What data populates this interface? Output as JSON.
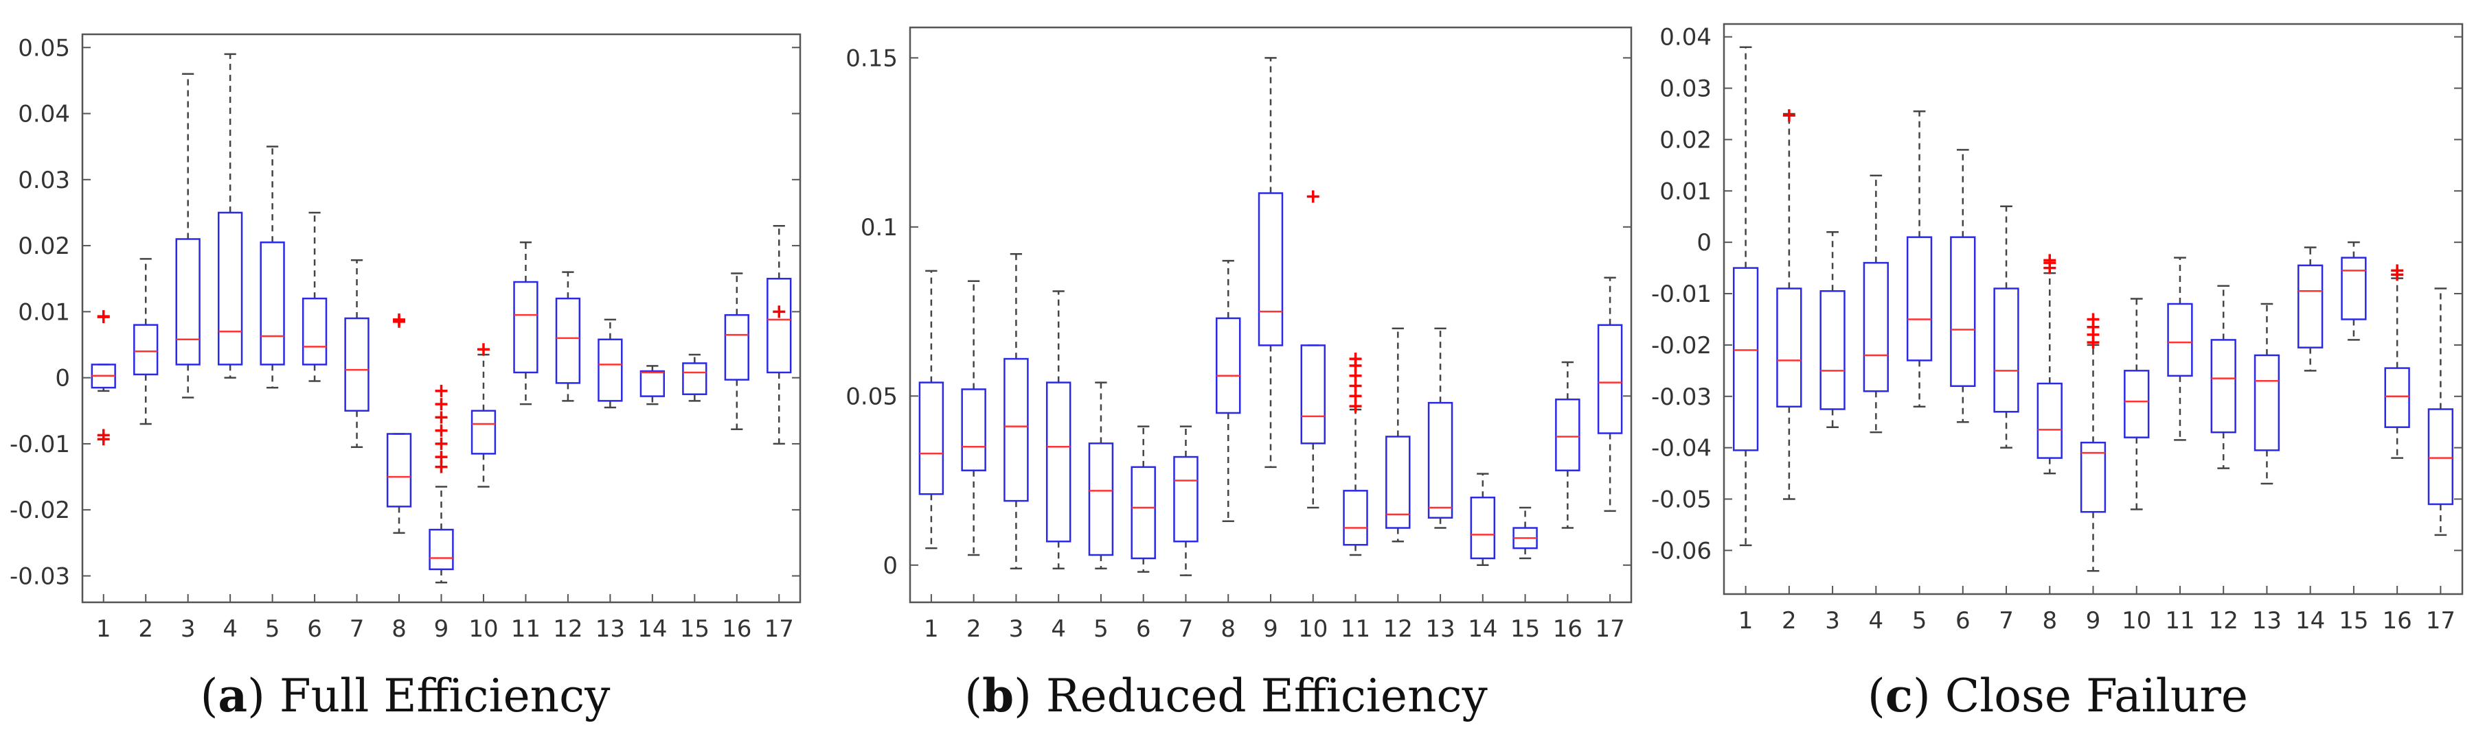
{
  "colors": {
    "box": "#2a2ae6",
    "median": "#ff3333",
    "whisker": "#444444",
    "outlier": "#ff0000",
    "frame": "#555555",
    "text": "#333333"
  },
  "chart_data": [
    {
      "type": "boxplot",
      "title": "Full Efficiency",
      "label": "a",
      "categories": [
        "1",
        "2",
        "3",
        "4",
        "5",
        "6",
        "7",
        "8",
        "9",
        "10",
        "11",
        "12",
        "13",
        "14",
        "15",
        "16",
        "17"
      ],
      "ylim": [
        -0.034,
        0.052
      ],
      "yticks": [
        -0.03,
        -0.02,
        -0.01,
        0,
        0.01,
        0.02,
        0.03,
        0.04,
        0.05
      ],
      "ytick_labels": [
        "-0.03",
        "-0.02",
        "-0.01",
        "0",
        "0.01",
        "0.02",
        "0.03",
        "0.04",
        "0.05"
      ],
      "boxes": [
        {
          "cat": "1",
          "lo": -0.002,
          "q1": -0.0015,
          "med": 0.0003,
          "q3": 0.002,
          "hi": 0.002,
          "outliers": [
            0.0093,
            0.0092,
            -0.0087,
            -0.0093
          ]
        },
        {
          "cat": "2",
          "lo": -0.007,
          "q1": 0.0005,
          "med": 0.004,
          "q3": 0.008,
          "hi": 0.018,
          "outliers": []
        },
        {
          "cat": "3",
          "lo": -0.003,
          "q1": 0.002,
          "med": 0.0058,
          "q3": 0.021,
          "hi": 0.046,
          "outliers": []
        },
        {
          "cat": "4",
          "lo": 0.0,
          "q1": 0.002,
          "med": 0.007,
          "q3": 0.025,
          "hi": 0.049,
          "outliers": []
        },
        {
          "cat": "5",
          "lo": -0.0015,
          "q1": 0.002,
          "med": 0.0063,
          "q3": 0.0205,
          "hi": 0.035,
          "outliers": []
        },
        {
          "cat": "6",
          "lo": -0.0005,
          "q1": 0.002,
          "med": 0.0047,
          "q3": 0.012,
          "hi": 0.025,
          "outliers": []
        },
        {
          "cat": "7",
          "lo": -0.0105,
          "q1": -0.005,
          "med": 0.0012,
          "q3": 0.009,
          "hi": 0.0178,
          "outliers": []
        },
        {
          "cat": "8",
          "lo": -0.0235,
          "q1": -0.0195,
          "med": -0.015,
          "q3": -0.0085,
          "hi": -0.0085,
          "outliers": [
            0.0088,
            0.0085
          ]
        },
        {
          "cat": "9",
          "lo": -0.031,
          "q1": -0.029,
          "med": -0.0273,
          "q3": -0.023,
          "hi": -0.0165,
          "outliers": [
            -0.0135,
            -0.012,
            -0.01,
            -0.008,
            -0.006,
            -0.004,
            -0.002
          ]
        },
        {
          "cat": "10",
          "lo": -0.0165,
          "q1": -0.0115,
          "med": -0.007,
          "q3": -0.005,
          "hi": 0.0035,
          "outliers": [
            0.0043
          ]
        },
        {
          "cat": "11",
          "lo": -0.004,
          "q1": 0.0008,
          "med": 0.0095,
          "q3": 0.0145,
          "hi": 0.0205,
          "outliers": []
        },
        {
          "cat": "12",
          "lo": -0.0035,
          "q1": -0.0008,
          "med": 0.006,
          "q3": 0.012,
          "hi": 0.016,
          "outliers": []
        },
        {
          "cat": "13",
          "lo": -0.0045,
          "q1": -0.0035,
          "med": 0.002,
          "q3": 0.0058,
          "hi": 0.0088,
          "outliers": []
        },
        {
          "cat": "14",
          "lo": -0.004,
          "q1": -0.0028,
          "med": 0.0008,
          "q3": 0.001,
          "hi": 0.0018,
          "outliers": []
        },
        {
          "cat": "15",
          "lo": -0.0035,
          "q1": -0.0025,
          "med": 0.0008,
          "q3": 0.0022,
          "hi": 0.0035,
          "outliers": []
        },
        {
          "cat": "16",
          "lo": -0.0078,
          "q1": -0.0003,
          "med": 0.0065,
          "q3": 0.0095,
          "hi": 0.0158,
          "outliers": []
        },
        {
          "cat": "17",
          "lo": -0.01,
          "q1": 0.0008,
          "med": 0.0088,
          "q3": 0.015,
          "hi": 0.023,
          "outliers": [
            0.01
          ]
        }
      ]
    },
    {
      "type": "boxplot",
      "title": "Reduced Efficiency",
      "label": "b",
      "categories": [
        "1",
        "2",
        "3",
        "4",
        "5",
        "6",
        "7",
        "8",
        "9",
        "10",
        "11",
        "12",
        "13",
        "14",
        "15",
        "16",
        "17"
      ],
      "ylim": [
        -0.011,
        0.159
      ],
      "yticks": [
        0,
        0.05,
        0.1,
        0.15
      ],
      "ytick_labels": [
        "0",
        "0.05",
        "0.1",
        "0.15"
      ],
      "boxes": [
        {
          "cat": "1",
          "lo": 0.005,
          "q1": 0.021,
          "med": 0.033,
          "q3": 0.054,
          "hi": 0.087,
          "outliers": []
        },
        {
          "cat": "2",
          "lo": 0.003,
          "q1": 0.028,
          "med": 0.035,
          "q3": 0.052,
          "hi": 0.084,
          "outliers": []
        },
        {
          "cat": "3",
          "lo": -0.001,
          "q1": 0.019,
          "med": 0.041,
          "q3": 0.061,
          "hi": 0.092,
          "outliers": []
        },
        {
          "cat": "4",
          "lo": -0.001,
          "q1": 0.007,
          "med": 0.035,
          "q3": 0.054,
          "hi": 0.081,
          "outliers": []
        },
        {
          "cat": "5",
          "lo": -0.001,
          "q1": 0.003,
          "med": 0.022,
          "q3": 0.036,
          "hi": 0.054,
          "outliers": []
        },
        {
          "cat": "6",
          "lo": -0.002,
          "q1": 0.002,
          "med": 0.017,
          "q3": 0.029,
          "hi": 0.041,
          "outliers": []
        },
        {
          "cat": "7",
          "lo": -0.003,
          "q1": 0.007,
          "med": 0.025,
          "q3": 0.032,
          "hi": 0.041,
          "outliers": []
        },
        {
          "cat": "8",
          "lo": 0.013,
          "q1": 0.045,
          "med": 0.056,
          "q3": 0.073,
          "hi": 0.09,
          "outliers": []
        },
        {
          "cat": "9",
          "lo": 0.029,
          "q1": 0.065,
          "med": 0.075,
          "q3": 0.11,
          "hi": 0.15,
          "outliers": []
        },
        {
          "cat": "10",
          "lo": 0.017,
          "q1": 0.036,
          "med": 0.044,
          "q3": 0.065,
          "hi": 0.065,
          "outliers": [
            0.109
          ]
        },
        {
          "cat": "11",
          "lo": 0.003,
          "q1": 0.006,
          "med": 0.011,
          "q3": 0.022,
          "hi": 0.046,
          "outliers": [
            0.047,
            0.05,
            0.053,
            0.056,
            0.059,
            0.061
          ]
        },
        {
          "cat": "12",
          "lo": 0.007,
          "q1": 0.011,
          "med": 0.015,
          "q3": 0.038,
          "hi": 0.07,
          "outliers": []
        },
        {
          "cat": "13",
          "lo": 0.011,
          "q1": 0.014,
          "med": 0.017,
          "q3": 0.048,
          "hi": 0.07,
          "outliers": []
        },
        {
          "cat": "14",
          "lo": 0.0,
          "q1": 0.002,
          "med": 0.009,
          "q3": 0.02,
          "hi": 0.027,
          "outliers": []
        },
        {
          "cat": "15",
          "lo": 0.002,
          "q1": 0.005,
          "med": 0.008,
          "q3": 0.011,
          "hi": 0.017,
          "outliers": []
        },
        {
          "cat": "16",
          "lo": 0.011,
          "q1": 0.028,
          "med": 0.038,
          "q3": 0.049,
          "hi": 0.06,
          "outliers": []
        },
        {
          "cat": "17",
          "lo": 0.016,
          "q1": 0.039,
          "med": 0.054,
          "q3": 0.071,
          "hi": 0.085,
          "outliers": []
        }
      ]
    },
    {
      "type": "boxplot",
      "title": "Close Failure",
      "label": "c",
      "categories": [
        "1",
        "2",
        "3",
        "4",
        "5",
        "6",
        "7",
        "8",
        "9",
        "10",
        "11",
        "12",
        "13",
        "14",
        "15",
        "16",
        "17"
      ],
      "ylim": [
        -0.0685,
        0.0425
      ],
      "yticks": [
        -0.06,
        -0.05,
        -0.04,
        -0.03,
        -0.02,
        -0.01,
        0,
        0.01,
        0.02,
        0.03,
        0.04
      ],
      "ytick_labels": [
        "-0.06",
        "-0.05",
        "-0.04",
        "-0.03",
        "-0.02",
        "-0.01",
        "0",
        "0.01",
        "0.02",
        "0.03",
        "0.04"
      ],
      "boxes": [
        {
          "cat": "1",
          "lo": -0.059,
          "q1": -0.0405,
          "med": -0.021,
          "q3": -0.005,
          "hi": 0.038,
          "outliers": []
        },
        {
          "cat": "2",
          "lo": -0.05,
          "q1": -0.032,
          "med": -0.023,
          "q3": -0.009,
          "hi": 0.025,
          "outliers": [
            0.0247
          ]
        },
        {
          "cat": "3",
          "lo": -0.036,
          "q1": -0.0325,
          "med": -0.025,
          "q3": -0.0095,
          "hi": 0.002,
          "outliers": []
        },
        {
          "cat": "4",
          "lo": -0.037,
          "q1": -0.029,
          "med": -0.022,
          "q3": -0.004,
          "hi": 0.013,
          "outliers": []
        },
        {
          "cat": "5",
          "lo": -0.032,
          "q1": -0.023,
          "med": -0.015,
          "q3": 0.001,
          "hi": 0.0255,
          "outliers": []
        },
        {
          "cat": "6",
          "lo": -0.035,
          "q1": -0.028,
          "med": -0.017,
          "q3": 0.001,
          "hi": 0.018,
          "outliers": []
        },
        {
          "cat": "7",
          "lo": -0.04,
          "q1": -0.033,
          "med": -0.025,
          "q3": -0.009,
          "hi": 0.007,
          "outliers": []
        },
        {
          "cat": "8",
          "lo": -0.045,
          "q1": -0.042,
          "med": -0.0365,
          "q3": -0.0275,
          "hi": -0.006,
          "outliers": [
            -0.005,
            -0.004,
            -0.0035
          ]
        },
        {
          "cat": "9",
          "lo": -0.064,
          "q1": -0.0525,
          "med": -0.041,
          "q3": -0.039,
          "hi": -0.02,
          "outliers": [
            -0.0195,
            -0.018,
            -0.0165,
            -0.015
          ]
        },
        {
          "cat": "10",
          "lo": -0.052,
          "q1": -0.038,
          "med": -0.031,
          "q3": -0.025,
          "hi": -0.011,
          "outliers": []
        },
        {
          "cat": "11",
          "lo": -0.0385,
          "q1": -0.026,
          "med": -0.0195,
          "q3": -0.012,
          "hi": -0.003,
          "outliers": []
        },
        {
          "cat": "12",
          "lo": -0.044,
          "q1": -0.037,
          "med": -0.0265,
          "q3": -0.019,
          "hi": -0.0085,
          "outliers": []
        },
        {
          "cat": "13",
          "lo": -0.047,
          "q1": -0.0405,
          "med": -0.027,
          "q3": -0.022,
          "hi": -0.012,
          "outliers": []
        },
        {
          "cat": "14",
          "lo": -0.025,
          "q1": -0.0205,
          "med": -0.0095,
          "q3": -0.0045,
          "hi": -0.001,
          "outliers": []
        },
        {
          "cat": "15",
          "lo": -0.019,
          "q1": -0.015,
          "med": -0.0055,
          "q3": -0.003,
          "hi": 0.0,
          "outliers": []
        },
        {
          "cat": "16",
          "lo": -0.042,
          "q1": -0.036,
          "med": -0.03,
          "q3": -0.0245,
          "hi": -0.007,
          "outliers": [
            -0.0063,
            -0.0055
          ]
        },
        {
          "cat": "17",
          "lo": -0.057,
          "q1": -0.051,
          "med": -0.042,
          "q3": -0.0325,
          "hi": -0.009,
          "outliers": []
        }
      ]
    }
  ],
  "captions": [
    {
      "label": "a",
      "text": "Full Efficiency"
    },
    {
      "label": "b",
      "text": "Reduced Efficiency"
    },
    {
      "label": "c",
      "text": "Close Failure"
    }
  ]
}
